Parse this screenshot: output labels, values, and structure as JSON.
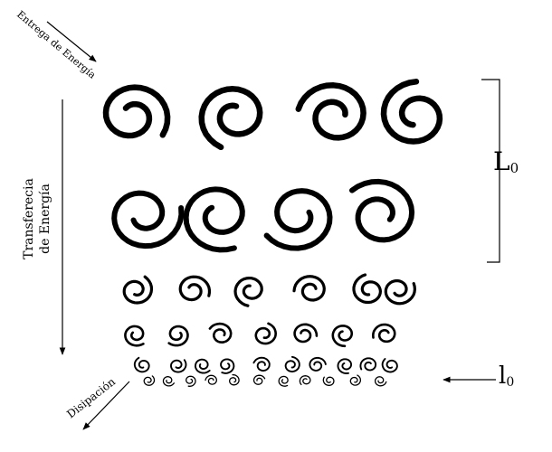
{
  "labels": {
    "input": "Entrega de Energía",
    "transfer_line1": "Transferecia",
    "transfer_line2": "de Energía",
    "dissipation": "Disipación",
    "large_scale_main": "L",
    "large_scale_sub": "0",
    "small_scale_main": "l",
    "small_scale_sub": "0"
  },
  "colors": {
    "ink": "#000000",
    "background": "#ffffff"
  },
  "icons": {
    "input_arrow": "arrow-down-right-icon",
    "transfer_arrow": "arrow-down-icon",
    "dissipation_arrow": "arrow-down-left-icon",
    "small_scale_arrow": "arrow-left-icon",
    "large_scale_bracket": "bracket-icon",
    "eddy": "swirl-icon"
  }
}
